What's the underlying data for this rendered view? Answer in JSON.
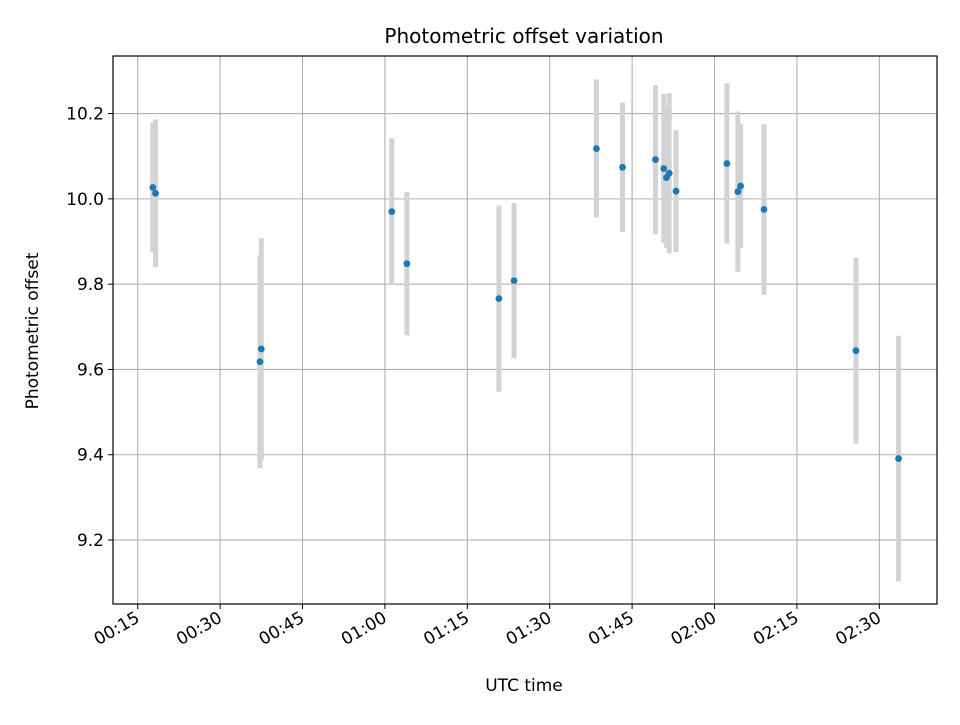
{
  "chart_data": {
    "type": "scatter",
    "title": "Photometric offset variation",
    "xlabel": "UTC time",
    "ylabel": "Photometric offset",
    "x_unit": "HH:MM UTC",
    "xlim": [
      "00:10:30",
      "02:40:30"
    ],
    "ylim": [
      9.05,
      10.335
    ],
    "xticks": [
      "00:15",
      "00:30",
      "00:45",
      "01:00",
      "01:15",
      "01:30",
      "01:45",
      "02:00",
      "02:15",
      "02:30"
    ],
    "yticks": [
      9.2,
      9.4,
      9.6,
      9.8,
      10.0,
      10.2
    ],
    "ytick_labels": [
      "9.2",
      "9.4",
      "9.6",
      "9.8",
      "10.0",
      "10.2"
    ],
    "grid": true,
    "series": [
      {
        "marker_color": "#1f77b4",
        "errorbar_color": "#d3d3d3",
        "points": [
          {
            "x": "00:17:45",
            "y": 10.027,
            "err": 0.152
          },
          {
            "x": "00:18:15",
            "y": 10.013,
            "err": 0.173
          },
          {
            "x": "00:37:15",
            "y": 9.618,
            "err": 0.25
          },
          {
            "x": "00:37:30",
            "y": 9.648,
            "err": 0.26
          },
          {
            "x": "01:01:15",
            "y": 9.97,
            "err": 0.172
          },
          {
            "x": "01:04:00",
            "y": 9.848,
            "err": 0.168
          },
          {
            "x": "01:20:45",
            "y": 9.766,
            "err": 0.218
          },
          {
            "x": "01:23:30",
            "y": 9.808,
            "err": 0.182
          },
          {
            "x": "01:38:30",
            "y": 10.118,
            "err": 0.162
          },
          {
            "x": "01:43:15",
            "y": 10.074,
            "err": 0.152
          },
          {
            "x": "01:49:15",
            "y": 10.092,
            "err": 0.175
          },
          {
            "x": "01:50:45",
            "y": 10.071,
            "err": 0.175
          },
          {
            "x": "01:51:15",
            "y": 10.05,
            "err": 0.165
          },
          {
            "x": "01:51:45",
            "y": 10.06,
            "err": 0.188
          },
          {
            "x": "01:53:00",
            "y": 10.018,
            "err": 0.143
          },
          {
            "x": "02:02:15",
            "y": 10.083,
            "err": 0.188
          },
          {
            "x": "02:04:15",
            "y": 10.017,
            "err": 0.188
          },
          {
            "x": "02:04:45",
            "y": 10.03,
            "err": 0.145
          },
          {
            "x": "02:09:00",
            "y": 9.975,
            "err": 0.2
          },
          {
            "x": "02:25:45",
            "y": 9.644,
            "err": 0.218
          },
          {
            "x": "02:33:30",
            "y": 9.391,
            "err": 0.288
          }
        ]
      }
    ]
  }
}
